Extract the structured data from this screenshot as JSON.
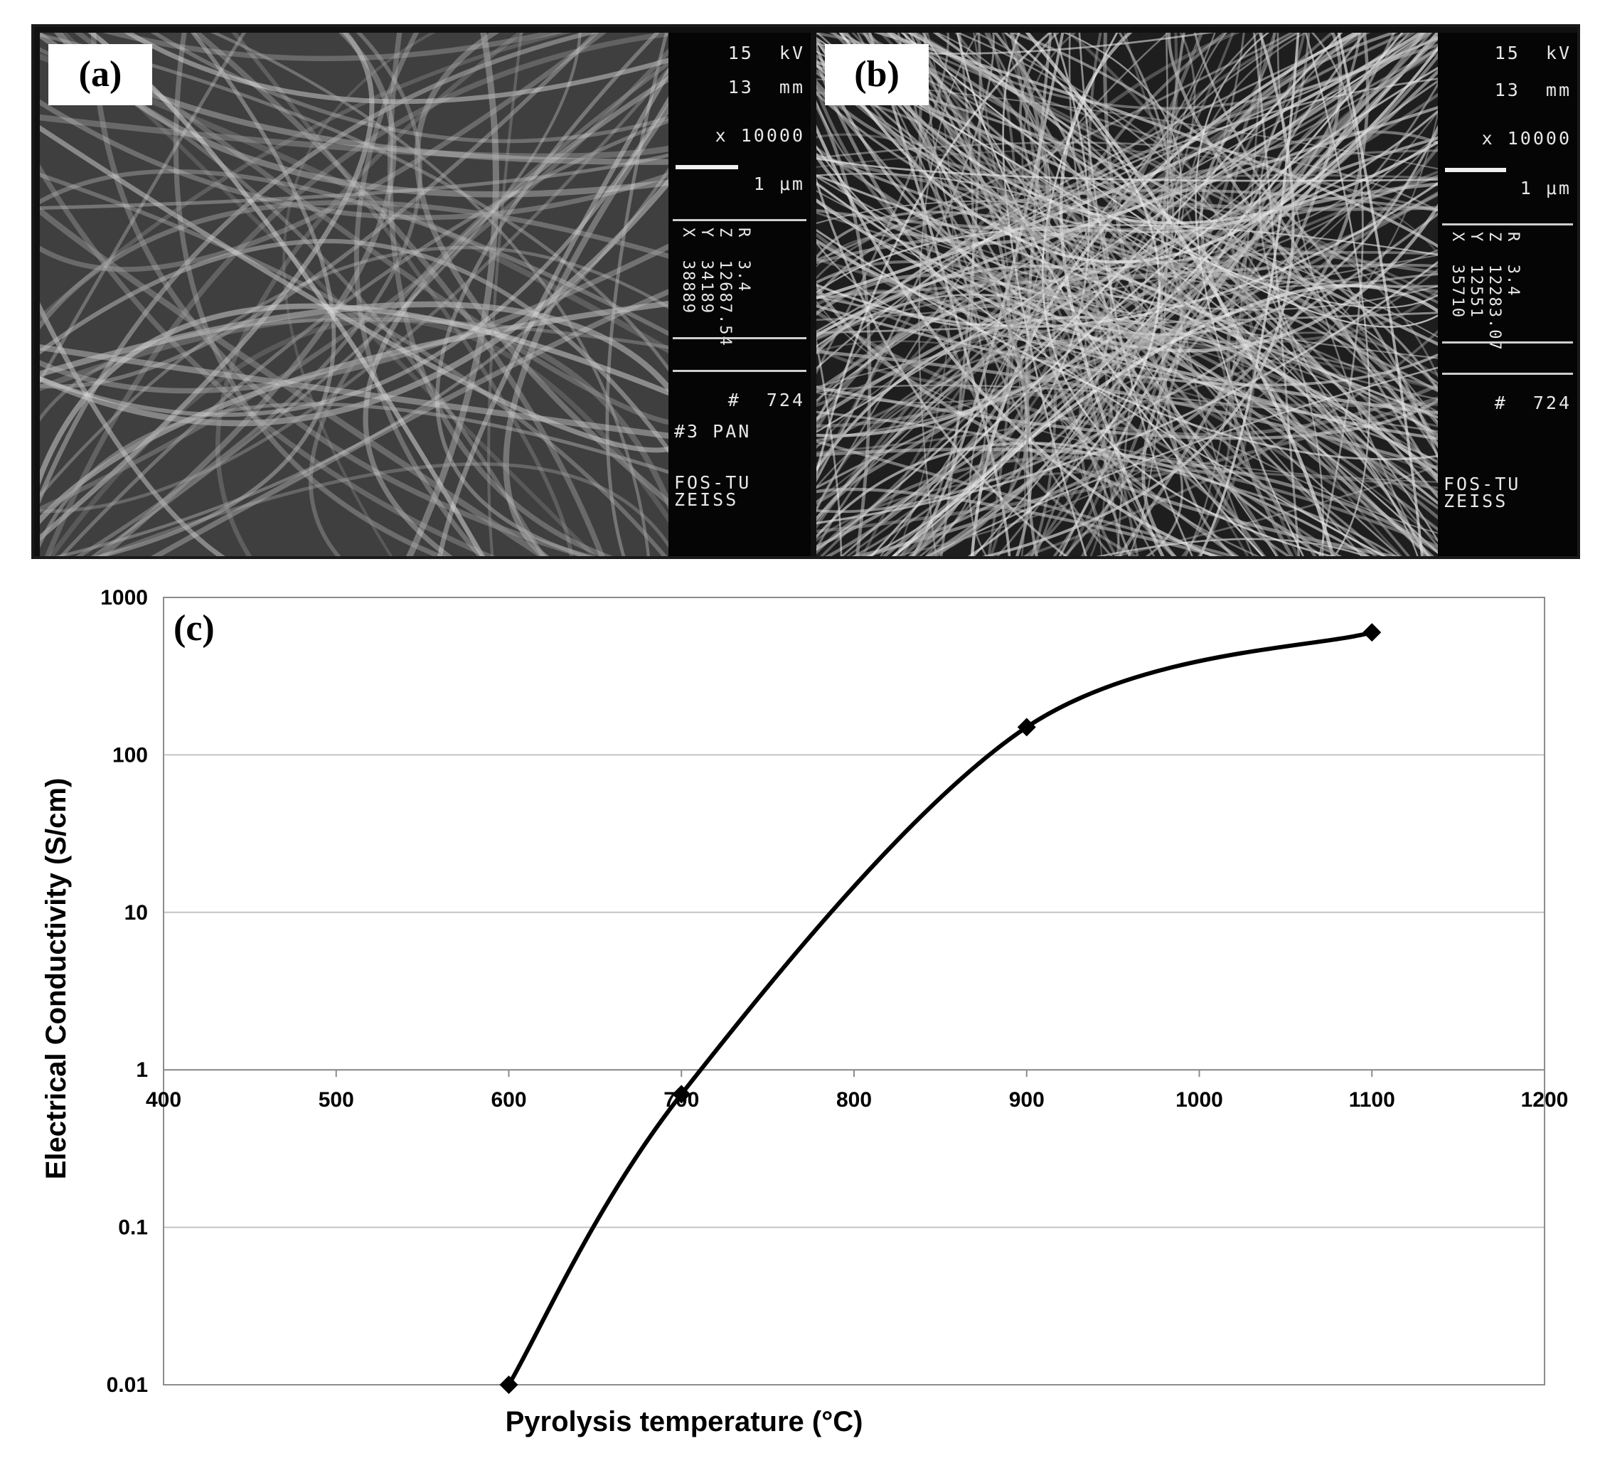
{
  "panels": {
    "a": {
      "label": "(a)",
      "kv": "15  kV",
      "wd": "13  mm",
      "mag": "x 10000",
      "scale": "1 μm",
      "coords": [
        "X  38889",
        "Y  34189",
        "Z  12687.54",
        "R  3.4"
      ],
      "photo_no": "#  724",
      "sample": "#3 PAN",
      "maker1": "FOS-TU",
      "maker2": "ZEISS"
    },
    "b": {
      "label": "(b)",
      "kv": "15  kV",
      "wd": "13  mm",
      "mag": "x 10000",
      "scale": "1 μm",
      "coords": [
        "X  35710",
        "Y  12551",
        "Z  12283.07",
        "R  3.4"
      ],
      "photo_no": "#  724",
      "maker1": "FOS-TU",
      "maker2": "ZEISS"
    }
  },
  "chart_data": {
    "type": "line",
    "panel_label": "(c)",
    "xlabel": "Pyrolysis temperature (°C)",
    "ylabel": "Electrical Conductivity (S/cm)",
    "x_ticks": [
      "400",
      "500",
      "600",
      "700",
      "800",
      "900",
      "1000",
      "1100",
      "1200"
    ],
    "y_ticks": [
      "0.01",
      "0.1",
      "1",
      "10",
      "100",
      "1000"
    ],
    "xlim": [
      400,
      1200
    ],
    "ylim": [
      0.01,
      1000
    ],
    "y_scale": "log",
    "grid": "horizontal",
    "series": [
      {
        "marker": "diamond",
        "smooth": true,
        "color": "#000000",
        "x": [
          600,
          700,
          900,
          1100
        ],
        "y": [
          0.01,
          0.7,
          150,
          600
        ]
      }
    ]
  }
}
